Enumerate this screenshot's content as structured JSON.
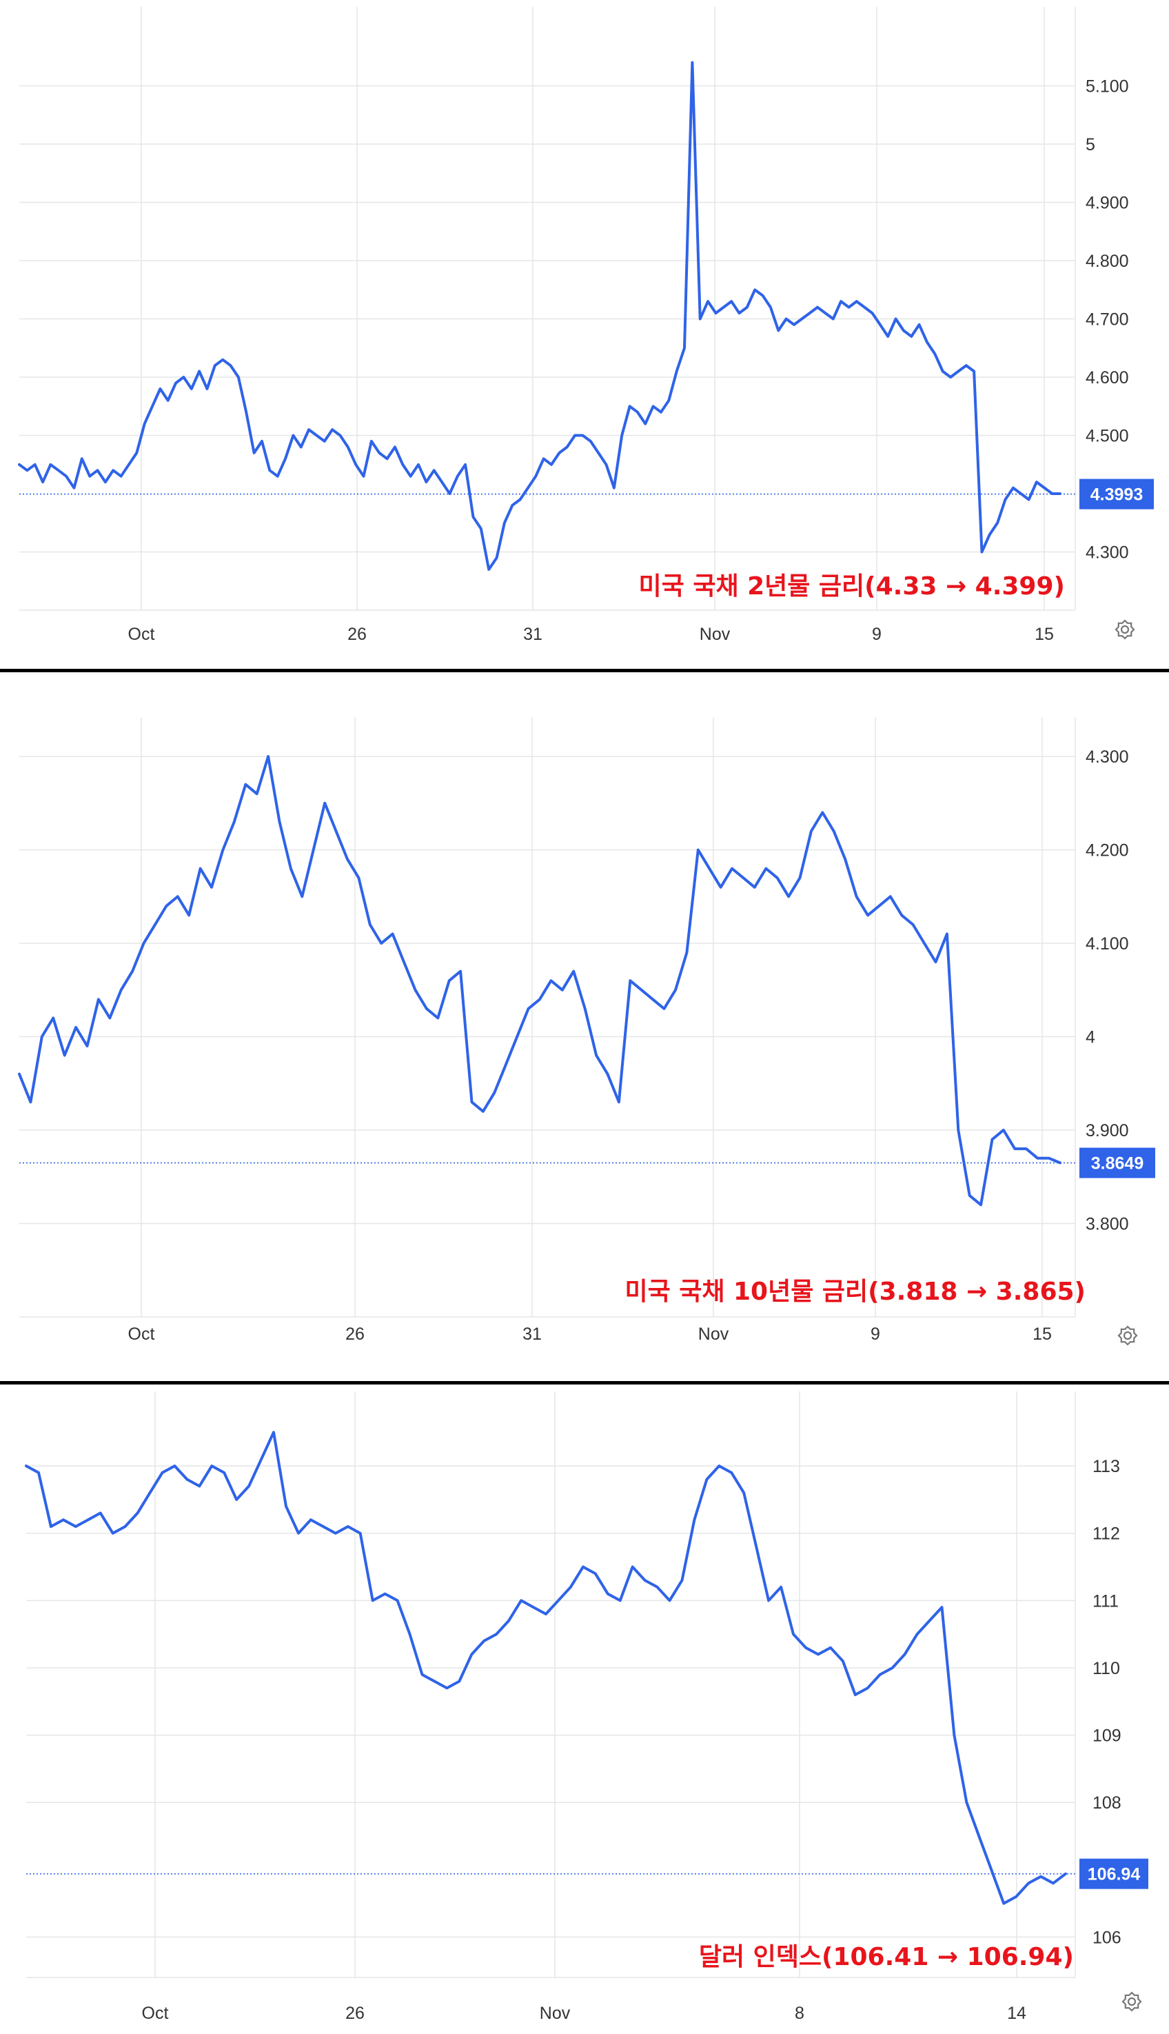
{
  "colors": {
    "line": "#2f63e8",
    "grid": "#e6e6e6",
    "annotation": "#e8141c",
    "badge": "#2f63e8"
  },
  "chart_data": [
    {
      "type": "line",
      "annotation": "미국 국채 2년물 금리(4.33 → 4.399)",
      "current_value_label": "4.3993",
      "current_value": 4.3993,
      "x_tick_labels": [
        "Oct",
        "26",
        "31",
        "Nov",
        "9",
        "15"
      ],
      "y_tick_labels": [
        "5.100",
        "5",
        "4.900",
        "4.800",
        "4.700",
        "4.600",
        "4.500",
        "4.300"
      ],
      "y_tick_values": [
        5.1,
        5.0,
        4.9,
        4.8,
        4.7,
        4.6,
        4.5,
        4.3
      ],
      "ylim": [
        4.2,
        5.2
      ],
      "grid": true,
      "series": [
        {
          "values": [
            4.45,
            4.44,
            4.45,
            4.42,
            4.45,
            4.44,
            4.43,
            4.41,
            4.46,
            4.43,
            4.44,
            4.42,
            4.44,
            4.43,
            4.45,
            4.47,
            4.52,
            4.55,
            4.58,
            4.56,
            4.59,
            4.6,
            4.58,
            4.61,
            4.58,
            4.62,
            4.63,
            4.62,
            4.6,
            4.54,
            4.47,
            4.49,
            4.44,
            4.43,
            4.46,
            4.5,
            4.48,
            4.51,
            4.5,
            4.49,
            4.51,
            4.5,
            4.48,
            4.45,
            4.43,
            4.49,
            4.47,
            4.46,
            4.48,
            4.45,
            4.43,
            4.45,
            4.42,
            4.44,
            4.42,
            4.4,
            4.43,
            4.45,
            4.36,
            4.34,
            4.27,
            4.29,
            4.35,
            4.38,
            4.39,
            4.41,
            4.43,
            4.46,
            4.45,
            4.47,
            4.48,
            4.5,
            4.5,
            4.49,
            4.47,
            4.45,
            4.41,
            4.5,
            4.55,
            4.54,
            4.52,
            4.55,
            4.54,
            4.56,
            4.61,
            4.65,
            5.14,
            4.7,
            4.73,
            4.71,
            4.72,
            4.73,
            4.71,
            4.72,
            4.75,
            4.74,
            4.72,
            4.68,
            4.7,
            4.69,
            4.7,
            4.71,
            4.72,
            4.71,
            4.7,
            4.73,
            4.72,
            4.73,
            4.72,
            4.71,
            4.69,
            4.67,
            4.7,
            4.68,
            4.67,
            4.69,
            4.66,
            4.64,
            4.61,
            4.6,
            4.61,
            4.62,
            4.61,
            4.3,
            4.33,
            4.35,
            4.39,
            4.41,
            4.4,
            4.39,
            4.42,
            4.41,
            4.4,
            4.4
          ]
        }
      ]
    },
    {
      "type": "line",
      "annotation": "미국 국채 10년물 금리(3.818 → 3.865)",
      "current_value_label": "3.8649",
      "current_value": 3.8649,
      "x_tick_labels": [
        "Oct",
        "26",
        "31",
        "Nov",
        "9",
        "15"
      ],
      "y_tick_labels": [
        "4.300",
        "4.200",
        "4.100",
        "4",
        "3.900",
        "3.800"
      ],
      "y_tick_values": [
        4.3,
        4.2,
        4.1,
        4.0,
        3.9,
        3.8
      ],
      "ylim": [
        3.7,
        4.32
      ],
      "grid": true,
      "series": [
        {
          "values": [
            3.96,
            3.93,
            4.0,
            4.02,
            3.98,
            4.01,
            3.99,
            4.04,
            4.02,
            4.05,
            4.07,
            4.1,
            4.12,
            4.14,
            4.15,
            4.13,
            4.18,
            4.16,
            4.2,
            4.23,
            4.27,
            4.26,
            4.3,
            4.23,
            4.18,
            4.15,
            4.2,
            4.25,
            4.22,
            4.19,
            4.17,
            4.12,
            4.1,
            4.11,
            4.08,
            4.05,
            4.03,
            4.02,
            4.06,
            4.07,
            3.93,
            3.92,
            3.94,
            3.97,
            4.0,
            4.03,
            4.04,
            4.06,
            4.05,
            4.07,
            4.03,
            3.98,
            3.96,
            3.93,
            4.06,
            4.05,
            4.04,
            4.03,
            4.05,
            4.09,
            4.2,
            4.18,
            4.16,
            4.18,
            4.17,
            4.16,
            4.18,
            4.17,
            4.15,
            4.17,
            4.22,
            4.24,
            4.22,
            4.19,
            4.15,
            4.13,
            4.14,
            4.15,
            4.13,
            4.12,
            4.1,
            4.08,
            4.11,
            3.9,
            3.83,
            3.82,
            3.89,
            3.9,
            3.88,
            3.88,
            3.87,
            3.87,
            3.865
          ]
        }
      ]
    },
    {
      "type": "line",
      "annotation": "달러 인덱스(106.41 → 106.94)",
      "current_value_label": "106.94",
      "current_value": 106.94,
      "x_tick_labels": [
        "Oct",
        "26",
        "Nov",
        "8",
        "14"
      ],
      "y_tick_labels": [
        "113",
        "112",
        "111",
        "110",
        "109",
        "108",
        "106"
      ],
      "y_tick_values": [
        113,
        112,
        111,
        110,
        109,
        108,
        106
      ],
      "ylim": [
        105.4,
        113.8
      ],
      "grid": true,
      "series": [
        {
          "values": [
            113.0,
            112.9,
            112.1,
            112.2,
            112.1,
            112.2,
            112.3,
            112.0,
            112.1,
            112.3,
            112.6,
            112.9,
            113.0,
            112.8,
            112.7,
            113.0,
            112.9,
            112.5,
            112.7,
            113.1,
            113.5,
            112.4,
            112.0,
            112.2,
            112.1,
            112.0,
            112.1,
            112.0,
            111.0,
            111.1,
            111.0,
            110.5,
            109.9,
            109.8,
            109.7,
            109.8,
            110.2,
            110.4,
            110.5,
            110.7,
            111.0,
            110.9,
            110.8,
            111.0,
            111.2,
            111.5,
            111.4,
            111.1,
            111.0,
            111.5,
            111.3,
            111.2,
            111.0,
            111.3,
            112.2,
            112.8,
            113.0,
            112.9,
            112.6,
            111.8,
            111.0,
            111.2,
            110.5,
            110.3,
            110.2,
            110.3,
            110.1,
            109.6,
            109.7,
            109.9,
            110.0,
            110.2,
            110.5,
            110.7,
            110.9,
            109.0,
            108.0,
            107.5,
            107.0,
            106.5,
            106.6,
            106.8,
            106.9,
            106.8,
            106.94
          ]
        }
      ]
    }
  ]
}
